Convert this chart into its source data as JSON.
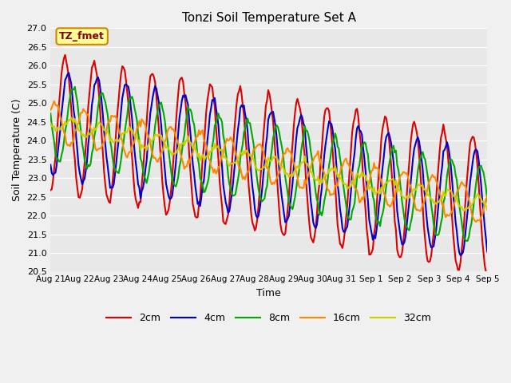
{
  "title": "Tonzi Soil Temperature Set A",
  "xlabel": "Time",
  "ylabel": "Soil Temperature (C)",
  "ylim": [
    20.5,
    27.0
  ],
  "xtick_labels": [
    "Aug 21",
    "Aug 22",
    "Aug 23",
    "Aug 24",
    "Aug 25",
    "Aug 26",
    "Aug 27",
    "Aug 28",
    "Aug 29",
    "Aug 30",
    "Aug 31",
    "Sep 1",
    "Sep 2",
    "Sep 3",
    "Sep 4",
    "Sep 5"
  ],
  "series_colors": [
    "#dd0000",
    "#0000cc",
    "#00aa00",
    "#ff8800",
    "#cccc00"
  ],
  "series_labels": [
    "2cm",
    "4cm",
    "8cm",
    "16cm",
    "32cm"
  ],
  "line_width": 1.5,
  "plot_bg_color": "#e8e8e8",
  "fig_bg_color": "#f0f0f0",
  "annotation_text": "TZ_fmet",
  "annotation_bg": "#ffff99",
  "annotation_border": "#cc8800",
  "annotation_text_color": "#880000"
}
